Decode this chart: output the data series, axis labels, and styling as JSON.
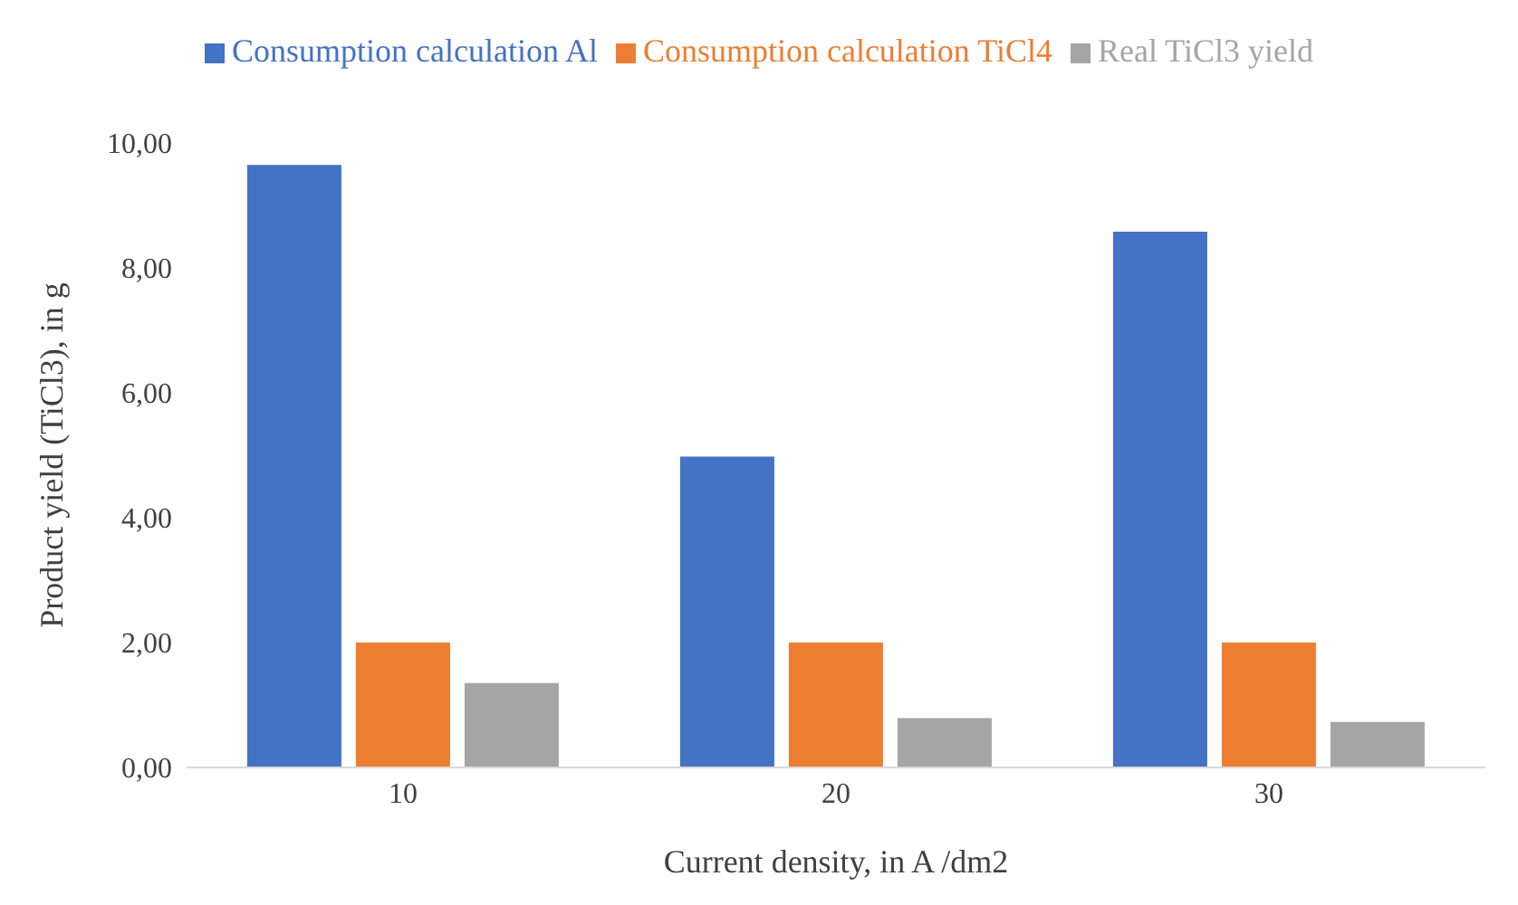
{
  "chart_data": {
    "type": "bar",
    "xlabel": "Current density, in A /dm2",
    "ylabel": "Product yield (TiCl3), in g",
    "categories": [
      "10",
      "20",
      "30"
    ],
    "series": [
      {
        "name": "Consumption calculation Al",
        "color": "#4472c4",
        "values": [
          9.65,
          4.98,
          8.58
        ]
      },
      {
        "name": "Consumption calculation TiCl4",
        "color": "#ed7d31",
        "values": [
          2.0,
          2.0,
          2.0
        ]
      },
      {
        "name": "Real TiCl3 yield",
        "color": "#a5a5a5",
        "values": [
          1.35,
          0.79,
          0.73
        ]
      }
    ],
    "ylim": [
      0,
      10
    ],
    "yticks": [
      {
        "value": 0,
        "label": "0,00"
      },
      {
        "value": 2,
        "label": "2,00"
      },
      {
        "value": 4,
        "label": "4,00"
      },
      {
        "value": 6,
        "label": "6,00"
      },
      {
        "value": 8,
        "label": "8,00"
      },
      {
        "value": 10,
        "label": "10,00"
      }
    ],
    "legend": "top",
    "grid": false
  }
}
